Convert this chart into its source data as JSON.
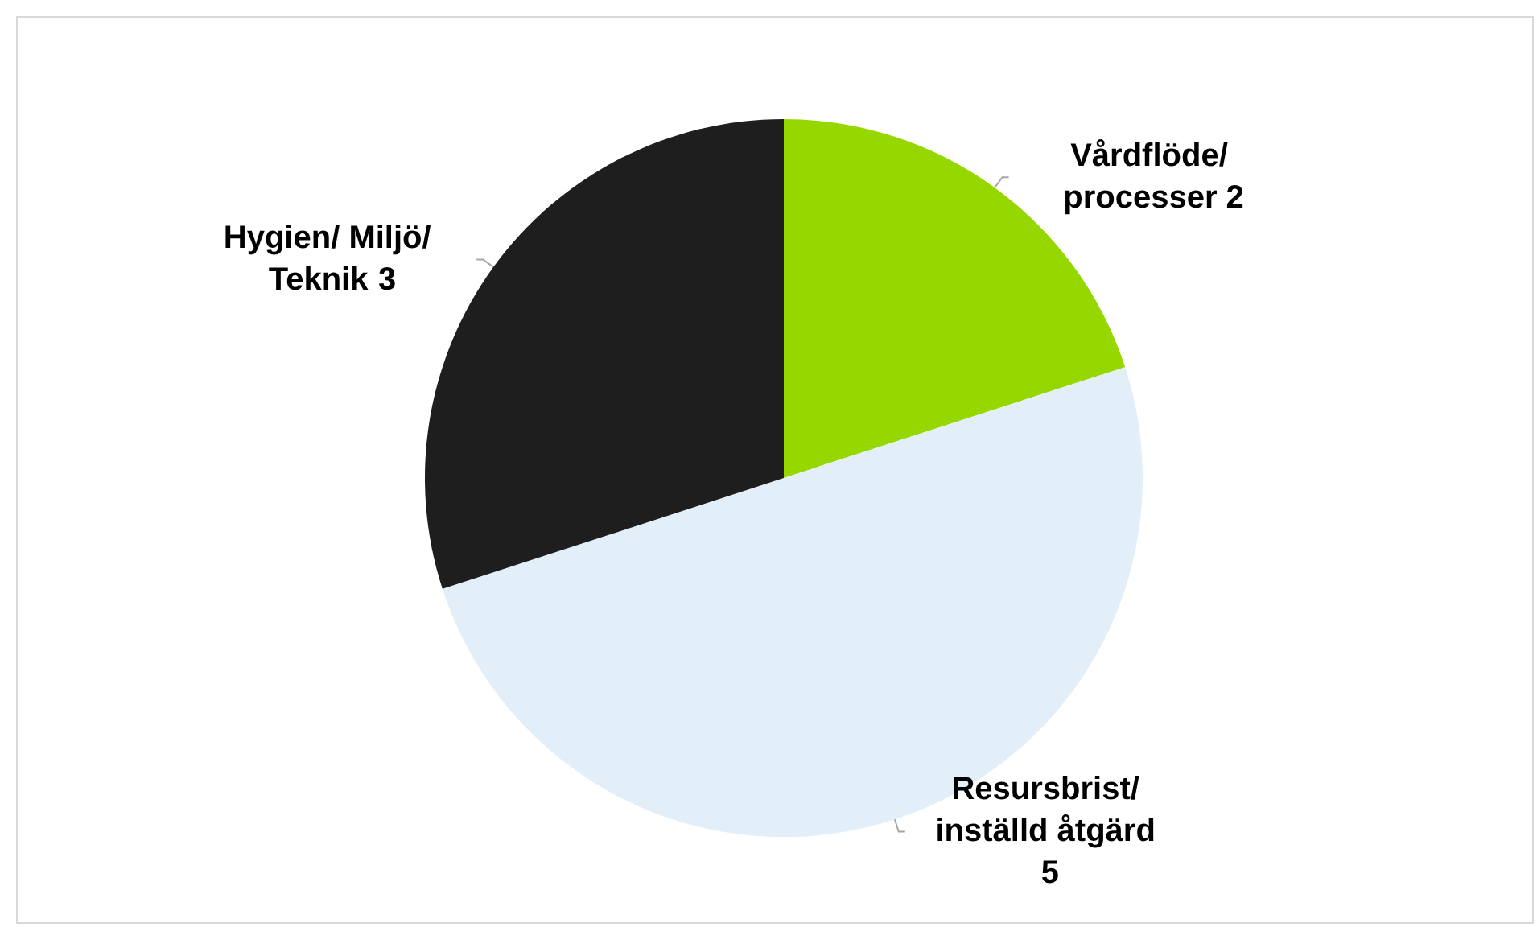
{
  "chart_data": {
    "type": "pie",
    "categories": [
      "Vårdflöde/ processer",
      "Resursbrist/ inställd åtgärd",
      "Hygien/ Miljö/ Teknik"
    ],
    "values": [
      2,
      5,
      3
    ],
    "colors": [
      "#97d700",
      "#e2eef8",
      "#1e1e1e"
    ],
    "data_labels": true,
    "legend": false
  }
}
